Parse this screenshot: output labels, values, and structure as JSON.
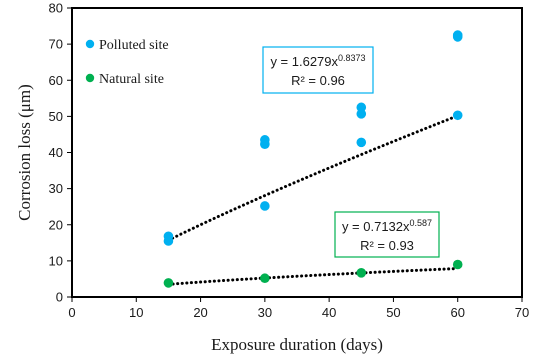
{
  "chart_data": {
    "type": "scatter",
    "xlabel": "Exposure duration (days)",
    "ylabel": "Corrosion loss (μm)",
    "xlim": [
      0,
      70
    ],
    "ylim": [
      0,
      80
    ],
    "xticks": [
      "0",
      "10",
      "20",
      "30",
      "40",
      "50",
      "60",
      "70"
    ],
    "yticks": [
      "0",
      "10",
      "20",
      "30",
      "40",
      "50",
      "60",
      "70",
      "80"
    ],
    "grid": false,
    "legend_position": "top-left",
    "series": [
      {
        "name": "Polluted site",
        "color": "#00b0f0",
        "points": [
          [
            15,
            15.5
          ],
          [
            15,
            16.8
          ],
          [
            30,
            25.2
          ],
          [
            30,
            42.3
          ],
          [
            30,
            43.5
          ],
          [
            45,
            42.8
          ],
          [
            45,
            50.7
          ],
          [
            45,
            52.5
          ],
          [
            60,
            50.3
          ],
          [
            60,
            72.0
          ],
          [
            60,
            72.5
          ]
        ],
        "fit": {
          "a": 1.6279,
          "b": 0.8373,
          "x_range": [
            15,
            60
          ]
        },
        "equation_main": "y = 1.6279x",
        "equation_exp": "0.8373",
        "r2_label": "R² = 0.96",
        "box_color": "#00b0f0"
      },
      {
        "name": "Natural site",
        "color": "#00b050",
        "points": [
          [
            15,
            3.9
          ],
          [
            30,
            5.2
          ],
          [
            45,
            6.7
          ],
          [
            60,
            9.0
          ]
        ],
        "fit": {
          "a": 0.7132,
          "b": 0.587,
          "x_range": [
            15,
            60
          ]
        },
        "equation_main": "y = 0.7132x",
        "equation_exp": "0.587",
        "r2_label": "R² = 0.93",
        "box_color": "#00b050"
      }
    ]
  }
}
